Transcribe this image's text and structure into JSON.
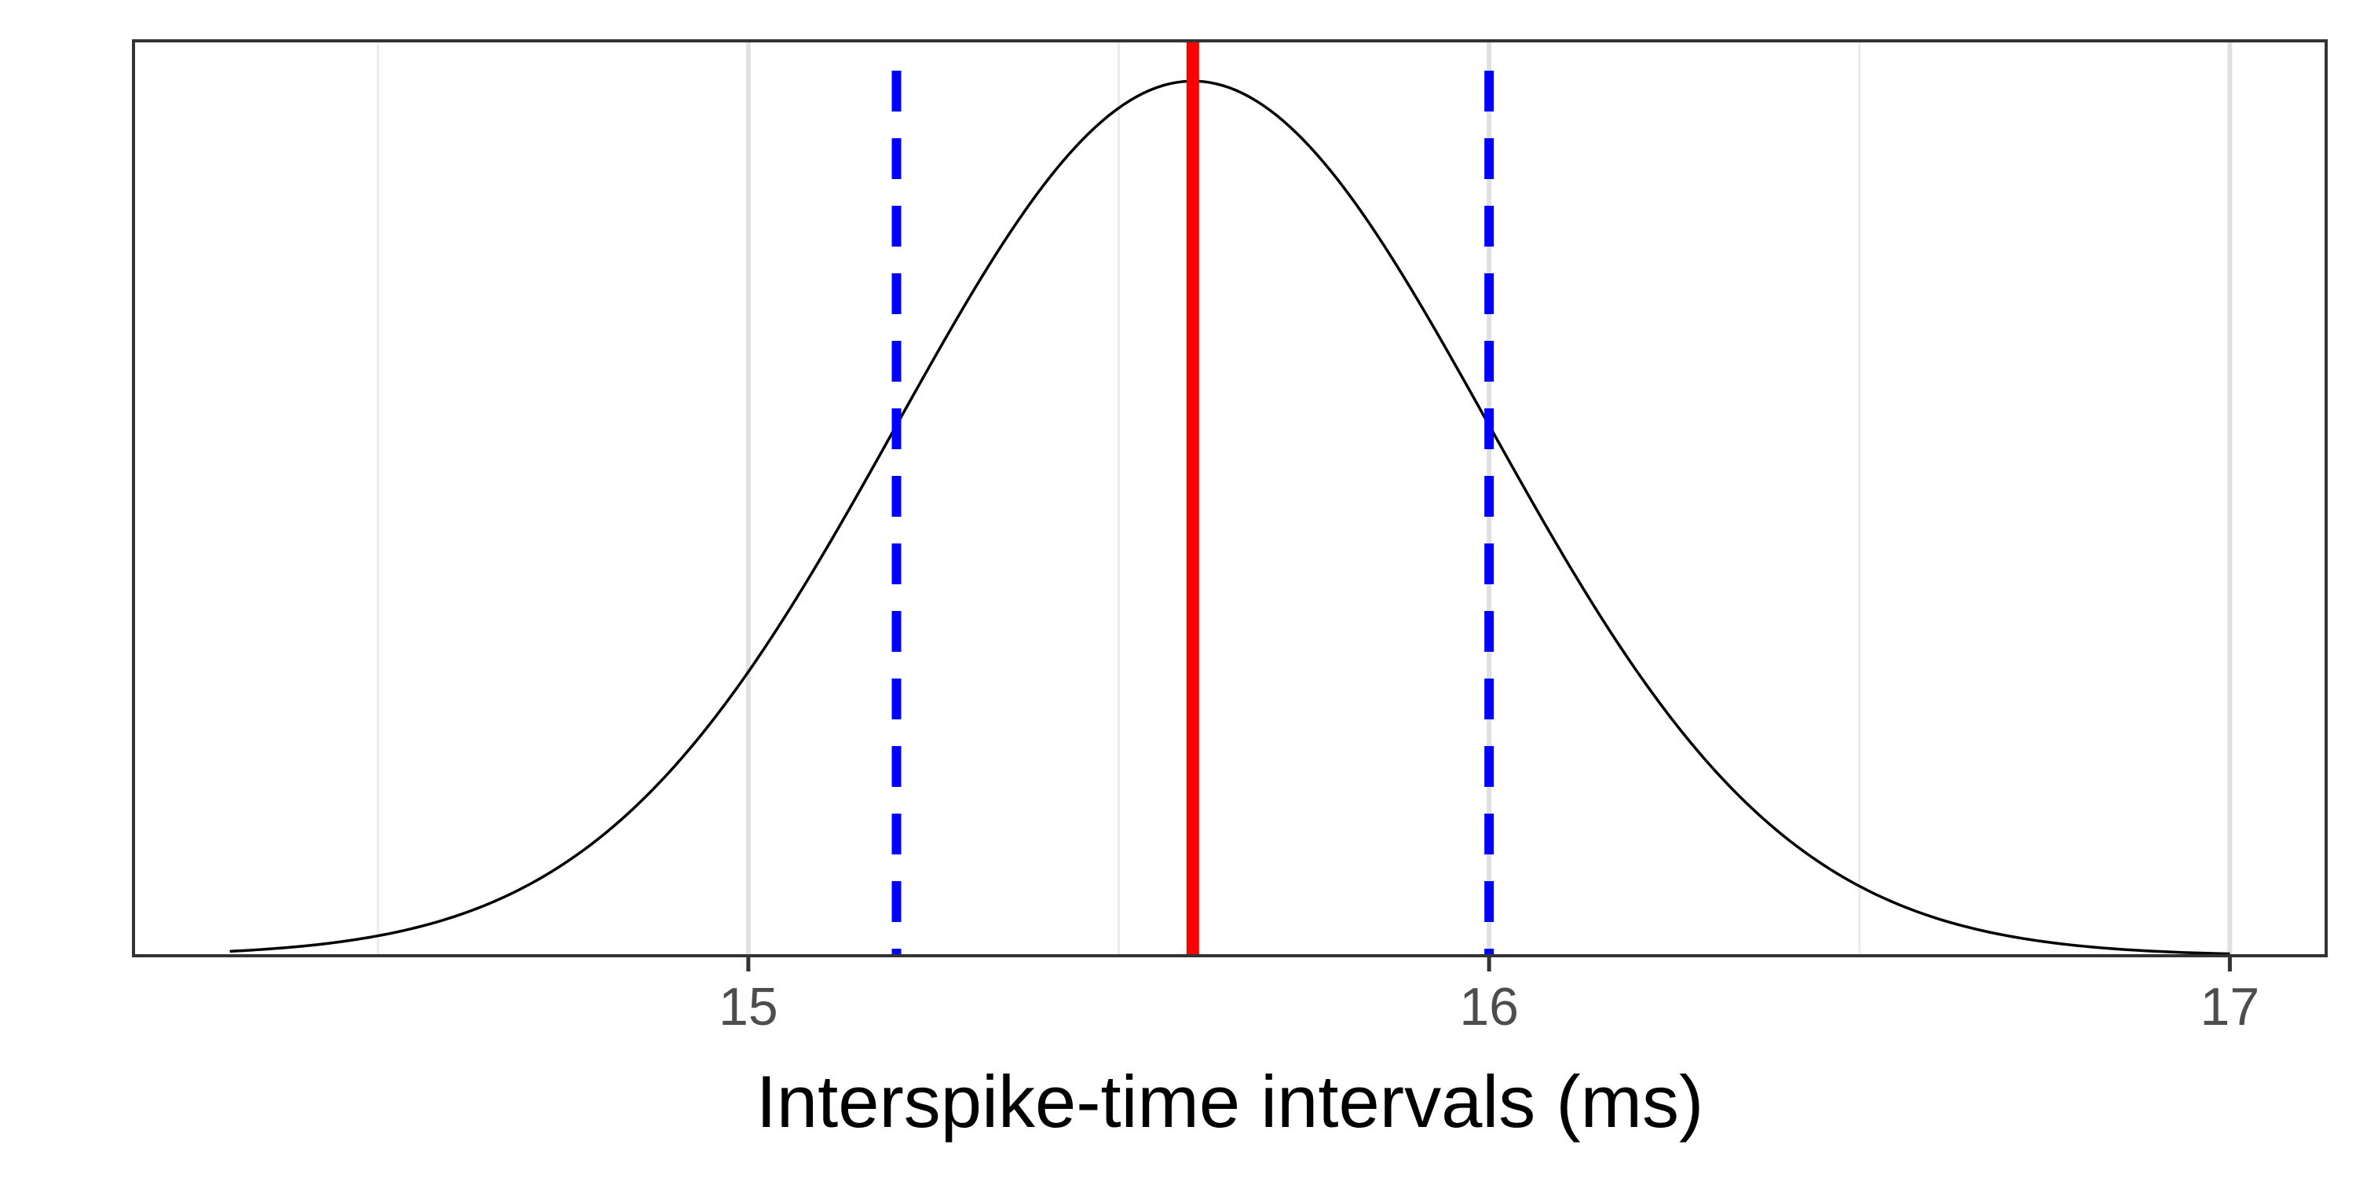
{
  "chart_data": {
    "type": "line",
    "title": "",
    "xlabel": "Interspike-time intervals (ms)",
    "ylabel": "",
    "xlim": [
      14.17,
      17.13
    ],
    "ylim": [
      0,
      1.046
    ],
    "x_ticks": [
      15,
      16,
      17
    ],
    "x_tick_labels": [
      "15",
      "16",
      "17"
    ],
    "x_minor_gridlines": [
      14.5,
      15.5,
      16.5
    ],
    "grid": true,
    "y_axis_labels_shown": false,
    "series": [
      {
        "kind": "density-curve",
        "x_range": [
          14.3,
          17.0
        ],
        "mean": 15.6,
        "sd": 0.4,
        "peak_density": 1.0,
        "color": "#000000"
      }
    ],
    "reference_lines": [
      {
        "x": 15.6,
        "color": "#ff0000",
        "style": "solid"
      },
      {
        "x": 15.2,
        "color": "#0000ff",
        "style": "dashed"
      },
      {
        "x": 16.0,
        "color": "#0000ff",
        "style": "dashed"
      }
    ],
    "colors": {
      "background": "#ffffff",
      "panel_border": "#333333",
      "major_grid": "#e0e0e0",
      "minor_grid": "#ebebeb",
      "tick_label": "#4d4d4d"
    }
  }
}
